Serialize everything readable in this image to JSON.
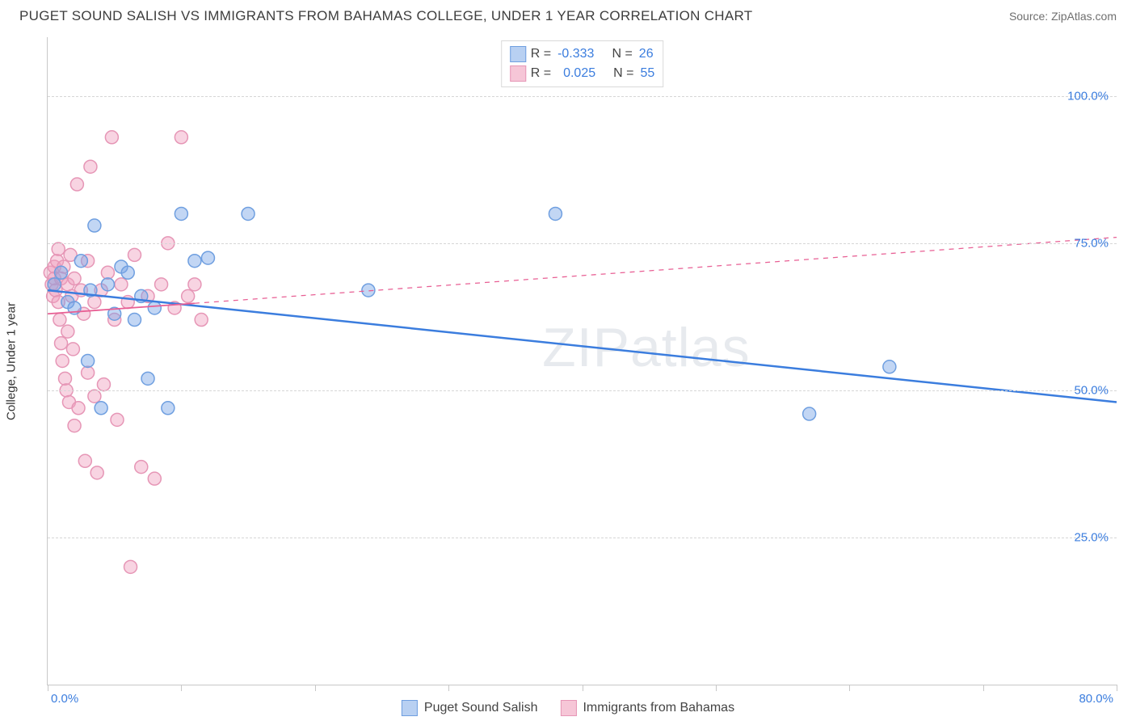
{
  "header": {
    "title": "PUGET SOUND SALISH VS IMMIGRANTS FROM BAHAMAS COLLEGE, UNDER 1 YEAR CORRELATION CHART",
    "source": "Source: ZipAtlas.com"
  },
  "chart": {
    "type": "scatter",
    "ylabel": "College, Under 1 year",
    "watermark": "ZIPatlas",
    "background_color": "#ffffff",
    "grid_color": "#d6d6d6",
    "axis_color": "#c8c8c8",
    "x_range": [
      0,
      80
    ],
    "y_range": [
      0,
      110
    ],
    "y_gridlines": [
      25,
      50,
      75,
      100
    ],
    "y_tick_labels": [
      "25.0%",
      "50.0%",
      "75.0%",
      "100.0%"
    ],
    "y_tick_color": "#3b7dde",
    "x_tick_positions": [
      0,
      10,
      20,
      30,
      40,
      50,
      60,
      70,
      80
    ],
    "x_min_label": "0.0%",
    "x_max_label": "80.0%",
    "x_label_color": "#3b7dde",
    "marker_radius": 8,
    "marker_stroke_width": 1.5,
    "series": [
      {
        "name": "Puget Sound Salish",
        "fill": "rgba(120,165,230,0.45)",
        "stroke": "#6f9fe0",
        "swatch_fill": "#b8d0f2",
        "swatch_border": "#6f9fe0",
        "R": "-0.333",
        "N": "26",
        "trend": {
          "x1": 0,
          "y1": 67,
          "x2": 80,
          "y2": 48,
          "solid_until_x": 80,
          "color": "#3b7dde",
          "width": 2.5
        },
        "points": [
          [
            0.5,
            68
          ],
          [
            1,
            70
          ],
          [
            1.5,
            65
          ],
          [
            2,
            64
          ],
          [
            2.5,
            72
          ],
          [
            3,
            55
          ],
          [
            3.2,
            67
          ],
          [
            3.5,
            78
          ],
          [
            4,
            47
          ],
          [
            4.5,
            68
          ],
          [
            5,
            63
          ],
          [
            5.5,
            71
          ],
          [
            6,
            70
          ],
          [
            6.5,
            62
          ],
          [
            7,
            66
          ],
          [
            7.5,
            52
          ],
          [
            8,
            64
          ],
          [
            9,
            47
          ],
          [
            10,
            80
          ],
          [
            11,
            72
          ],
          [
            12,
            72.5
          ],
          [
            15,
            80
          ],
          [
            24,
            67
          ],
          [
            38,
            80
          ],
          [
            57,
            46
          ],
          [
            63,
            54
          ]
        ]
      },
      {
        "name": "Immigrants from Bahamas",
        "fill": "rgba(240,160,190,0.45)",
        "stroke": "#e696b6",
        "swatch_fill": "#f6c6d7",
        "swatch_border": "#e696b6",
        "R": "0.025",
        "N": "55",
        "trend": {
          "x1": 0,
          "y1": 63,
          "x2": 80,
          "y2": 76,
          "solid_until_x": 11,
          "color": "#e85f94",
          "width": 1.8
        },
        "points": [
          [
            0.2,
            70
          ],
          [
            0.3,
            68
          ],
          [
            0.4,
            66
          ],
          [
            0.5,
            71
          ],
          [
            0.5,
            69
          ],
          [
            0.6,
            67
          ],
          [
            0.7,
            72
          ],
          [
            0.8,
            65
          ],
          [
            0.8,
            74
          ],
          [
            0.9,
            62
          ],
          [
            1,
            69
          ],
          [
            1,
            58
          ],
          [
            1.1,
            55
          ],
          [
            1.2,
            71
          ],
          [
            1.3,
            52
          ],
          [
            1.4,
            50
          ],
          [
            1.5,
            68
          ],
          [
            1.5,
            60
          ],
          [
            1.6,
            48
          ],
          [
            1.7,
            73
          ],
          [
            1.8,
            66
          ],
          [
            1.9,
            57
          ],
          [
            2,
            69
          ],
          [
            2,
            44
          ],
          [
            2.2,
            85
          ],
          [
            2.3,
            47
          ],
          [
            2.5,
            67
          ],
          [
            2.7,
            63
          ],
          [
            2.8,
            38
          ],
          [
            3,
            72
          ],
          [
            3,
            53
          ],
          [
            3.2,
            88
          ],
          [
            3.5,
            65
          ],
          [
            3.5,
            49
          ],
          [
            3.7,
            36
          ],
          [
            4,
            67
          ],
          [
            4.2,
            51
          ],
          [
            4.5,
            70
          ],
          [
            4.8,
            93
          ],
          [
            5,
            62
          ],
          [
            5.2,
            45
          ],
          [
            5.5,
            68
          ],
          [
            6,
            65
          ],
          [
            6.2,
            20
          ],
          [
            6.5,
            73
          ],
          [
            7,
            37
          ],
          [
            7.5,
            66
          ],
          [
            8,
            35
          ],
          [
            8.5,
            68
          ],
          [
            9,
            75
          ],
          [
            9.5,
            64
          ],
          [
            10,
            93
          ],
          [
            10.5,
            66
          ],
          [
            11,
            68
          ],
          [
            11.5,
            62
          ]
        ]
      }
    ],
    "legend_top": {
      "r_label": "R =",
      "n_label": "N ="
    },
    "legend_bottom_labels": [
      "Puget Sound Salish",
      "Immigrants from Bahamas"
    ]
  }
}
